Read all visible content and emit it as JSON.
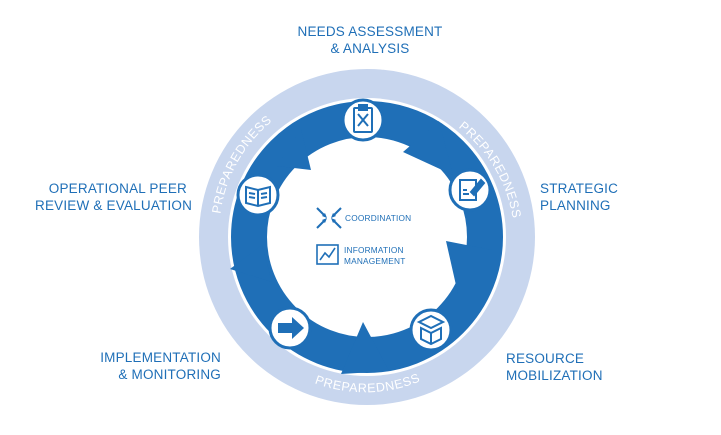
{
  "stages": {
    "needs": {
      "line1": "NEEDS ASSESSMENT",
      "line2": "& ANALYSIS",
      "icon": "clipboard-checklist-icon"
    },
    "strategic": {
      "line1": "STRATEGIC",
      "line2": "PLANNING",
      "icon": "document-edit-icon"
    },
    "resource": {
      "line1": "RESOURCE",
      "line2": "MOBILIZATION",
      "icon": "open-box-icon"
    },
    "implementation": {
      "line1": "IMPLEMENTATION",
      "line2": "& MONITORING",
      "icon": "right-arrow-icon"
    },
    "review": {
      "line1": "OPERATIONAL PEER",
      "line2": "REVIEW & EVALUATION",
      "icon": "open-book-icon"
    }
  },
  "preparedness": {
    "top_right": "PREPAREDNESS",
    "bottom": "PREPAREDNESS",
    "left": "PREPAREDNESS"
  },
  "center": {
    "coordination": "COORDINATION",
    "info_line1": "INFORMATION",
    "info_line2": "MANAGEMENT",
    "coordination_icon": "converging-arrows-icon",
    "info_icon": "line-chart-icon"
  },
  "colors": {
    "outer_ring": "#c8d6ee",
    "arrow_ring": "#1f6fb7",
    "text": "#1f6fb7",
    "background": "#ffffff"
  }
}
